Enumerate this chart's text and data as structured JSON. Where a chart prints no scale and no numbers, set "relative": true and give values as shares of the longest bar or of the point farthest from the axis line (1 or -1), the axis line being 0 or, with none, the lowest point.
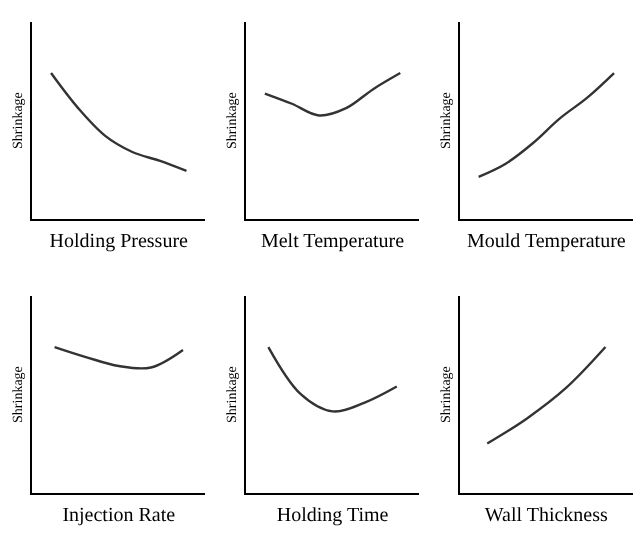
{
  "chart_data": [
    {
      "type": "line",
      "relative": true,
      "xlabel": "Holding Pressure",
      "ylabel": "Shrinkage",
      "categories": [
        null,
        null,
        null,
        null,
        null,
        null
      ],
      "values": [
        1,
        0.76,
        0.57,
        0.46,
        0.4,
        0.33
      ],
      "color": "#333333"
    },
    {
      "type": "line",
      "relative": true,
      "xlabel": "Melt Temperature",
      "ylabel": "Shrinkage",
      "categories": [
        null,
        null,
        null,
        null,
        null,
        null
      ],
      "values": [
        0.86,
        0.79,
        0.71,
        0.76,
        0.89,
        1
      ],
      "color": "#333333"
    },
    {
      "type": "line",
      "relative": true,
      "xlabel": "Mould Temperature",
      "ylabel": "Shrinkage",
      "categories": [
        null,
        null,
        null,
        null,
        null,
        null
      ],
      "values": [
        0.29,
        0.38,
        0.52,
        0.69,
        0.83,
        1
      ],
      "color": "#333333"
    },
    {
      "type": "line",
      "relative": true,
      "xlabel": "Injection Rate",
      "ylabel": "Shrinkage",
      "categories": [
        null,
        null,
        null,
        null,
        null
      ],
      "values": [
        1,
        0.93,
        0.87,
        0.86,
        0.98
      ],
      "color": "#333333"
    },
    {
      "type": "line",
      "relative": true,
      "xlabel": "Holding Time",
      "ylabel": "Shrinkage",
      "categories": [
        null,
        null,
        null,
        null,
        null
      ],
      "values": [
        1,
        0.68,
        0.56,
        0.62,
        0.73
      ],
      "color": "#333333"
    },
    {
      "type": "line",
      "relative": true,
      "xlabel": "Wall Thickness",
      "ylabel": "Shrinkage",
      "categories": [
        null,
        null,
        null,
        null
      ],
      "values": [
        0.34,
        0.51,
        0.72,
        1
      ],
      "color": "#333333"
    }
  ]
}
